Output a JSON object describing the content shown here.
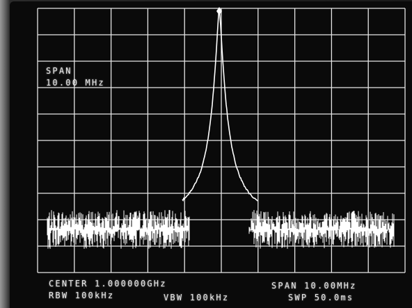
{
  "display": {
    "span_label": "SPAN",
    "span_value": "10.00 MHz"
  },
  "footer": {
    "center": "CENTER 1.000000GHz",
    "span": "SPAN 10.00MHz",
    "rbw": "RBW 100kHz",
    "vbw": "VBW 100kHz",
    "swp": "SWP 50.0ms"
  },
  "colors": {
    "trace": "#ffffff",
    "graticule": "#e6e6e6",
    "background": "#0a0a0a"
  }
}
